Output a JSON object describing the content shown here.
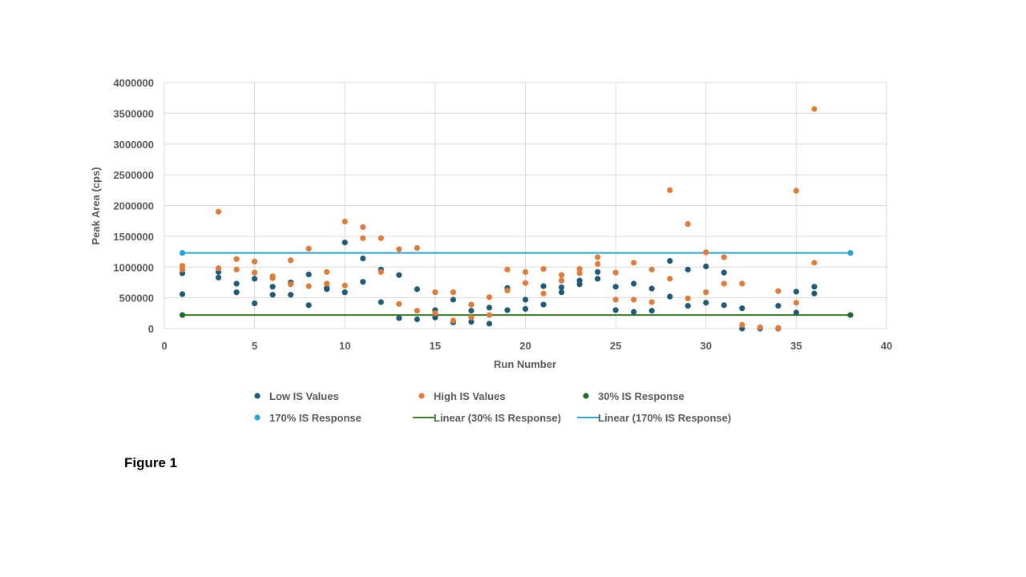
{
  "caption": "Figure 1",
  "chart_data": {
    "type": "scatter",
    "xlabel": "Run Number",
    "ylabel": "Peak Area (cps)",
    "xlim": [
      0,
      40
    ],
    "ylim": [
      0,
      4000000
    ],
    "x_ticks": [
      "0",
      "5",
      "10",
      "15",
      "20",
      "25",
      "30",
      "35",
      "40"
    ],
    "y_ticks": [
      "0",
      "500000",
      "1000000",
      "1500000",
      "2000000",
      "2500000",
      "3000000",
      "3500000",
      "4000000"
    ],
    "grid": true,
    "legend_position": "bottom",
    "series": [
      {
        "name": "Low IS Values",
        "color": "#1f5b78",
        "marker": "circle",
        "points": [
          [
            1,
            900000
          ],
          [
            1,
            560000
          ],
          [
            3,
            920000
          ],
          [
            3,
            830000
          ],
          [
            4,
            730000
          ],
          [
            4,
            590000
          ],
          [
            5,
            810000
          ],
          [
            5,
            410000
          ],
          [
            6,
            680000
          ],
          [
            6,
            550000
          ],
          [
            7,
            750000
          ],
          [
            7,
            550000
          ],
          [
            8,
            880000
          ],
          [
            8,
            380000
          ],
          [
            9,
            660000
          ],
          [
            9,
            640000
          ],
          [
            10,
            1400000
          ],
          [
            10,
            590000
          ],
          [
            11,
            1140000
          ],
          [
            11,
            760000
          ],
          [
            12,
            960000
          ],
          [
            12,
            430000
          ],
          [
            13,
            870000
          ],
          [
            13,
            170000
          ],
          [
            14,
            640000
          ],
          [
            14,
            150000
          ],
          [
            15,
            300000
          ],
          [
            15,
            180000
          ],
          [
            16,
            470000
          ],
          [
            16,
            100000
          ],
          [
            17,
            290000
          ],
          [
            17,
            110000
          ],
          [
            18,
            340000
          ],
          [
            18,
            80000
          ],
          [
            19,
            660000
          ],
          [
            19,
            300000
          ],
          [
            20,
            470000
          ],
          [
            20,
            320000
          ],
          [
            21,
            690000
          ],
          [
            21,
            390000
          ],
          [
            22,
            670000
          ],
          [
            22,
            590000
          ],
          [
            23,
            780000
          ],
          [
            23,
            720000
          ],
          [
            24,
            920000
          ],
          [
            24,
            810000
          ],
          [
            25,
            680000
          ],
          [
            25,
            300000
          ],
          [
            26,
            730000
          ],
          [
            26,
            270000
          ],
          [
            27,
            650000
          ],
          [
            27,
            290000
          ],
          [
            28,
            1100000
          ],
          [
            28,
            520000
          ],
          [
            29,
            960000
          ],
          [
            29,
            370000
          ],
          [
            30,
            1010000
          ],
          [
            30,
            420000
          ],
          [
            31,
            910000
          ],
          [
            31,
            380000
          ],
          [
            32,
            330000
          ],
          [
            32,
            0
          ],
          [
            33,
            0
          ],
          [
            34,
            370000
          ],
          [
            34,
            0
          ],
          [
            35,
            600000
          ],
          [
            35,
            260000
          ],
          [
            36,
            680000
          ],
          [
            36,
            570000
          ]
        ]
      },
      {
        "name": "High IS Values",
        "color": "#e07b39",
        "marker": "circle",
        "points": [
          [
            1,
            1020000
          ],
          [
            1,
            960000
          ],
          [
            3,
            1900000
          ],
          [
            3,
            980000
          ],
          [
            4,
            1130000
          ],
          [
            4,
            960000
          ],
          [
            5,
            1090000
          ],
          [
            5,
            910000
          ],
          [
            6,
            850000
          ],
          [
            6,
            820000
          ],
          [
            7,
            1110000
          ],
          [
            7,
            720000
          ],
          [
            8,
            1300000
          ],
          [
            8,
            690000
          ],
          [
            9,
            920000
          ],
          [
            9,
            730000
          ],
          [
            10,
            1740000
          ],
          [
            10,
            700000
          ],
          [
            11,
            1650000
          ],
          [
            11,
            1470000
          ],
          [
            12,
            1470000
          ],
          [
            12,
            920000
          ],
          [
            13,
            1290000
          ],
          [
            13,
            400000
          ],
          [
            14,
            1310000
          ],
          [
            14,
            290000
          ],
          [
            15,
            590000
          ],
          [
            15,
            250000
          ],
          [
            16,
            590000
          ],
          [
            16,
            130000
          ],
          [
            17,
            390000
          ],
          [
            17,
            180000
          ],
          [
            18,
            510000
          ],
          [
            18,
            220000
          ],
          [
            19,
            960000
          ],
          [
            19,
            620000
          ],
          [
            20,
            920000
          ],
          [
            20,
            740000
          ],
          [
            21,
            970000
          ],
          [
            21,
            570000
          ],
          [
            22,
            870000
          ],
          [
            22,
            780000
          ],
          [
            23,
            970000
          ],
          [
            23,
            900000
          ],
          [
            24,
            1160000
          ],
          [
            24,
            1050000
          ],
          [
            25,
            910000
          ],
          [
            25,
            470000
          ],
          [
            26,
            1070000
          ],
          [
            26,
            470000
          ],
          [
            27,
            960000
          ],
          [
            27,
            430000
          ],
          [
            28,
            2250000
          ],
          [
            28,
            810000
          ],
          [
            29,
            1700000
          ],
          [
            29,
            490000
          ],
          [
            30,
            1240000
          ],
          [
            30,
            590000
          ],
          [
            31,
            1160000
          ],
          [
            31,
            730000
          ],
          [
            32,
            730000
          ],
          [
            32,
            60000
          ],
          [
            33,
            20000
          ],
          [
            34,
            610000
          ],
          [
            34,
            10000
          ],
          [
            35,
            2240000
          ],
          [
            35,
            420000
          ],
          [
            36,
            3570000
          ],
          [
            36,
            1070000
          ]
        ]
      },
      {
        "name": "30% IS Response",
        "color": "#1e6b2e",
        "marker": "circle",
        "points": [
          [
            1,
            220000
          ],
          [
            38,
            220000
          ]
        ]
      },
      {
        "name": "170% IS Response",
        "color": "#22a8d6",
        "marker": "circle",
        "points": [
          [
            1,
            1230000
          ],
          [
            38,
            1230000
          ]
        ]
      },
      {
        "name": "Linear (30% IS Response)",
        "color": "#3a7d22",
        "marker": "line",
        "points": [
          [
            1,
            220000
          ],
          [
            38,
            220000
          ]
        ]
      },
      {
        "name": "Linear (170% IS Response)",
        "color": "#22a8d6",
        "marker": "line",
        "points": [
          [
            1,
            1230000
          ],
          [
            38,
            1230000
          ]
        ]
      }
    ]
  }
}
